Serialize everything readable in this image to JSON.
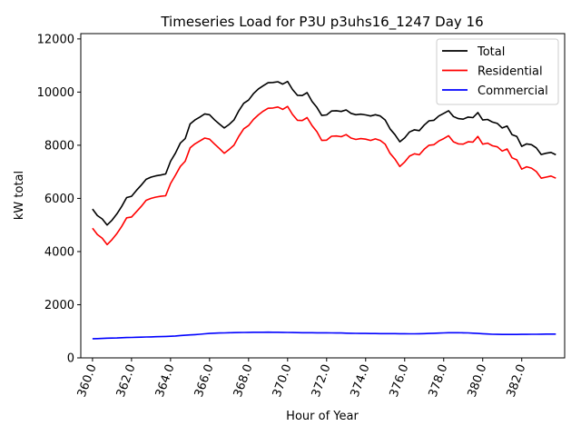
{
  "chart_data": {
    "type": "line",
    "title": "Timeseries Load for P3U p3uhs16_1247  Day 16",
    "xlabel": "Hour of Year",
    "ylabel": "kW total",
    "xlim": [
      359.4,
      384.2
    ],
    "ylim": [
      0,
      12200
    ],
    "x_ticks": [
      360,
      362,
      364,
      366,
      368,
      370,
      372,
      374,
      376,
      378,
      380,
      382
    ],
    "x_tick_labels": [
      "360.0",
      "362.0",
      "364.0",
      "366.0",
      "368.0",
      "370.0",
      "372.0",
      "374.0",
      "376.0",
      "378.0",
      "380.0",
      "382.0"
    ],
    "y_ticks": [
      0,
      2000,
      4000,
      6000,
      8000,
      10000,
      12000
    ],
    "y_tick_labels": [
      "0",
      "2000",
      "4000",
      "6000",
      "8000",
      "10000",
      "12000"
    ],
    "grid": false,
    "legend_position": "top-right",
    "x": [
      360.0,
      360.25,
      360.5,
      360.75,
      361.0,
      361.25,
      361.5,
      361.75,
      362.0,
      362.25,
      362.5,
      362.75,
      363.0,
      363.25,
      363.5,
      363.75,
      364.0,
      364.25,
      364.5,
      364.75,
      365.0,
      365.25,
      365.5,
      365.75,
      366.0,
      366.25,
      366.5,
      366.75,
      367.0,
      367.25,
      367.5,
      367.75,
      368.0,
      368.25,
      368.5,
      368.75,
      369.0,
      369.25,
      369.5,
      369.75,
      370.0,
      370.25,
      370.5,
      370.75,
      371.0,
      371.25,
      371.5,
      371.75,
      372.0,
      372.25,
      372.5,
      372.75,
      373.0,
      373.25,
      373.5,
      373.75,
      374.0,
      374.25,
      374.5,
      374.75,
      375.0,
      375.25,
      375.5,
      375.75,
      376.0,
      376.25,
      376.5,
      376.75,
      377.0,
      377.25,
      377.5,
      377.75,
      378.0,
      378.25,
      378.5,
      378.75,
      379.0,
      379.25,
      379.5,
      379.75,
      380.0,
      380.25,
      380.5,
      380.75,
      381.0,
      381.25,
      381.5,
      381.75,
      382.0,
      382.25,
      382.5,
      382.75,
      383.0,
      383.25,
      383.5,
      383.75
    ],
    "series": [
      {
        "name": "Total",
        "color": "#000000",
        "values": [
          5600,
          5350,
          5230,
          5000,
          5180,
          5420,
          5700,
          6030,
          6080,
          6300,
          6500,
          6720,
          6800,
          6850,
          6880,
          6920,
          7400,
          7700,
          8080,
          8250,
          8800,
          8950,
          9060,
          9180,
          9150,
          8960,
          8800,
          8650,
          8780,
          8950,
          9300,
          9580,
          9700,
          9940,
          10120,
          10240,
          10350,
          10360,
          10390,
          10300,
          10400,
          10100,
          9880,
          9870,
          9980,
          9650,
          9420,
          9120,
          9140,
          9290,
          9300,
          9270,
          9330,
          9200,
          9150,
          9170,
          9140,
          9100,
          9150,
          9100,
          8950,
          8620,
          8400,
          8130,
          8280,
          8500,
          8580,
          8550,
          8760,
          8920,
          8940,
          9100,
          9200,
          9300,
          9080,
          9000,
          8980,
          9060,
          9040,
          9230,
          8950,
          8970,
          8870,
          8820,
          8650,
          8720,
          8400,
          8330,
          7960,
          8050,
          8020,
          7900,
          7650,
          7700,
          7730,
          7640
        ]
      },
      {
        "name": "Residential",
        "color": "#ff0000",
        "values": [
          4880,
          4640,
          4500,
          4260,
          4450,
          4680,
          4950,
          5270,
          5300,
          5500,
          5700,
          5930,
          6000,
          6050,
          6080,
          6100,
          6560,
          6870,
          7200,
          7400,
          7900,
          8050,
          8160,
          8270,
          8230,
          8050,
          7880,
          7700,
          7840,
          8000,
          8340,
          8620,
          8740,
          8970,
          9140,
          9280,
          9390,
          9400,
          9440,
          9350,
          9460,
          9160,
          8940,
          8930,
          9040,
          8740,
          8510,
          8180,
          8190,
          8340,
          8350,
          8320,
          8400,
          8270,
          8220,
          8250,
          8230,
          8180,
          8240,
          8180,
          8040,
          7700,
          7480,
          7200,
          7370,
          7590,
          7680,
          7640,
          7850,
          8000,
          8020,
          8160,
          8250,
          8360,
          8130,
          8050,
          8040,
          8130,
          8120,
          8330,
          8040,
          8080,
          7980,
          7940,
          7780,
          7860,
          7530,
          7450,
          7100,
          7190,
          7140,
          7010,
          6760,
          6800,
          6840,
          6760
        ]
      },
      {
        "name": "Commercial",
        "color": "#0000ff",
        "values": [
          720,
          725,
          730,
          740,
          745,
          750,
          760,
          765,
          770,
          775,
          780,
          785,
          790,
          795,
          800,
          805,
          815,
          825,
          840,
          850,
          865,
          875,
          890,
          905,
          920,
          930,
          935,
          940,
          945,
          950,
          955,
          958,
          960,
          962,
          963,
          965,
          966,
          965,
          963,
          960,
          958,
          955,
          950,
          948,
          946,
          945,
          944,
          943,
          942,
          940,
          938,
          935,
          930,
          925,
          922,
          920,
          918,
          916,
          915,
          914,
          913,
          912,
          911,
          910,
          908,
          906,
          905,
          908,
          912,
          918,
          925,
          932,
          940,
          945,
          948,
          947,
          944,
          940,
          930,
          920,
          910,
          900,
          890,
          885,
          882,
          880,
          880,
          882,
          884,
          886,
          888,
          890,
          892,
          894,
          895,
          895
        ]
      }
    ]
  }
}
